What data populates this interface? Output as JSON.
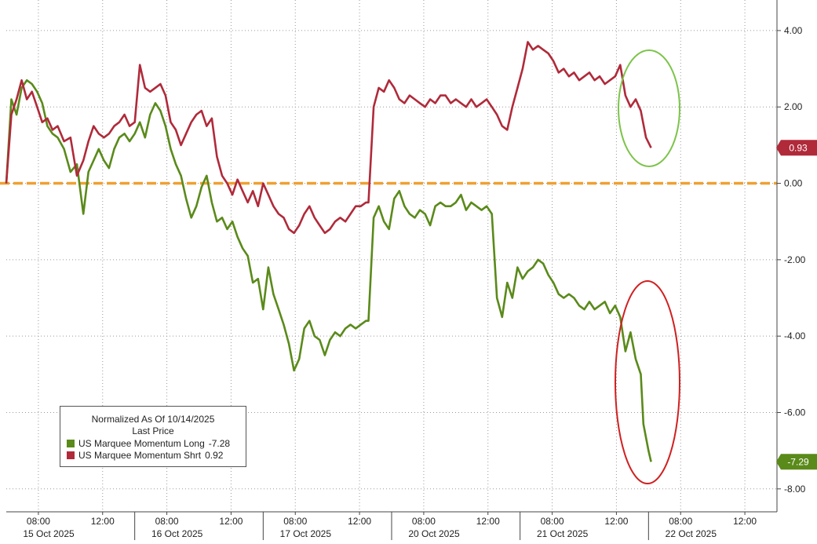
{
  "chart_data": {
    "type": "line",
    "legend": {
      "title": "Normalized As Of 10/14/2025",
      "subtitle": "Last Price",
      "placement": "bottom-left"
    },
    "y_axis": {
      "position": "right",
      "ylim": [
        -8.6,
        4.8
      ],
      "ticks": [
        4,
        2,
        0,
        -2,
        -4,
        -6,
        -8
      ],
      "tick_labels": [
        "4.00",
        "2.00",
        "0.00",
        "-2.00",
        "-4.00",
        "-6.00",
        "-8.00"
      ]
    },
    "x_axis": {
      "type": "time",
      "sessions": [
        "15 Oct 2025",
        "16 Oct 2025",
        "17 Oct 2025",
        "20 Oct 2025",
        "21 Oct 2025",
        "22 Oct 2025"
      ],
      "time_ticks": [
        "08:00",
        "12:00"
      ],
      "x_range": [
        0,
        6
      ]
    },
    "grid": true,
    "zero_line": {
      "value": 0,
      "color": "#f0a030",
      "style": "dashed"
    },
    "series": [
      {
        "name": "US Marquee Momentum Long",
        "legend_value": "-7.28",
        "color": "#5a8a1a",
        "last_label": "-7.29",
        "points": [
          [
            0.0,
            0.0
          ],
          [
            0.04,
            2.2
          ],
          [
            0.08,
            1.8
          ],
          [
            0.12,
            2.5
          ],
          [
            0.16,
            2.7
          ],
          [
            0.2,
            2.6
          ],
          [
            0.24,
            2.4
          ],
          [
            0.28,
            2.1
          ],
          [
            0.32,
            1.5
          ],
          [
            0.36,
            1.3
          ],
          [
            0.4,
            1.2
          ],
          [
            0.45,
            0.9
          ],
          [
            0.5,
            0.3
          ],
          [
            0.55,
            0.5
          ],
          [
            0.6,
            -0.8
          ],
          [
            0.64,
            0.3
          ],
          [
            0.68,
            0.6
          ],
          [
            0.72,
            0.9
          ],
          [
            0.76,
            0.6
          ],
          [
            0.8,
            0.4
          ],
          [
            0.84,
            0.9
          ],
          [
            0.88,
            1.2
          ],
          [
            0.92,
            1.3
          ],
          [
            0.96,
            1.1
          ],
          [
            1.0,
            1.3
          ],
          [
            1.04,
            1.6
          ],
          [
            1.08,
            1.2
          ],
          [
            1.12,
            1.8
          ],
          [
            1.16,
            2.1
          ],
          [
            1.2,
            1.9
          ],
          [
            1.24,
            1.5
          ],
          [
            1.28,
            0.9
          ],
          [
            1.32,
            0.5
          ],
          [
            1.36,
            0.2
          ],
          [
            1.4,
            -0.4
          ],
          [
            1.44,
            -0.9
          ],
          [
            1.48,
            -0.6
          ],
          [
            1.52,
            -0.1
          ],
          [
            1.56,
            0.2
          ],
          [
            1.6,
            -0.5
          ],
          [
            1.64,
            -1.0
          ],
          [
            1.68,
            -0.9
          ],
          [
            1.72,
            -1.2
          ],
          [
            1.76,
            -1.0
          ],
          [
            1.8,
            -1.4
          ],
          [
            1.84,
            -1.7
          ],
          [
            1.88,
            -1.9
          ],
          [
            1.92,
            -2.6
          ],
          [
            1.96,
            -2.5
          ],
          [
            2.0,
            -3.3
          ],
          [
            2.04,
            -2.2
          ],
          [
            2.08,
            -2.9
          ],
          [
            2.12,
            -3.3
          ],
          [
            2.16,
            -3.7
          ],
          [
            2.2,
            -4.2
          ],
          [
            2.24,
            -4.9
          ],
          [
            2.28,
            -4.6
          ],
          [
            2.32,
            -3.8
          ],
          [
            2.36,
            -3.6
          ],
          [
            2.4,
            -4.0
          ],
          [
            2.44,
            -4.1
          ],
          [
            2.48,
            -4.5
          ],
          [
            2.52,
            -4.1
          ],
          [
            2.56,
            -3.9
          ],
          [
            2.6,
            -4.0
          ],
          [
            2.64,
            -3.8
          ],
          [
            2.68,
            -3.7
          ],
          [
            2.72,
            -3.8
          ],
          [
            2.76,
            -3.7
          ],
          [
            2.8,
            -3.6
          ],
          [
            2.82,
            -3.6
          ],
          [
            2.86,
            -0.9
          ],
          [
            2.9,
            -0.6
          ],
          [
            2.94,
            -1.0
          ],
          [
            2.98,
            -1.2
          ],
          [
            3.02,
            -0.4
          ],
          [
            3.06,
            -0.2
          ],
          [
            3.1,
            -0.6
          ],
          [
            3.14,
            -0.8
          ],
          [
            3.18,
            -0.9
          ],
          [
            3.22,
            -0.7
          ],
          [
            3.26,
            -0.8
          ],
          [
            3.3,
            -1.1
          ],
          [
            3.34,
            -0.6
          ],
          [
            3.38,
            -0.5
          ],
          [
            3.42,
            -0.6
          ],
          [
            3.46,
            -0.6
          ],
          [
            3.5,
            -0.5
          ],
          [
            3.54,
            -0.3
          ],
          [
            3.58,
            -0.7
          ],
          [
            3.62,
            -0.5
          ],
          [
            3.66,
            -0.6
          ],
          [
            3.7,
            -0.7
          ],
          [
            3.74,
            -0.6
          ],
          [
            3.78,
            -0.8
          ],
          [
            3.82,
            -3.0
          ],
          [
            3.86,
            -3.5
          ],
          [
            3.9,
            -2.6
          ],
          [
            3.94,
            -3.0
          ],
          [
            3.98,
            -2.2
          ],
          [
            4.02,
            -2.5
          ],
          [
            4.06,
            -2.3
          ],
          [
            4.1,
            -2.2
          ],
          [
            4.14,
            -2.0
          ],
          [
            4.18,
            -2.1
          ],
          [
            4.22,
            -2.4
          ],
          [
            4.26,
            -2.6
          ],
          [
            4.3,
            -2.9
          ],
          [
            4.34,
            -3.0
          ],
          [
            4.38,
            -2.9
          ],
          [
            4.42,
            -3.0
          ],
          [
            4.46,
            -3.2
          ],
          [
            4.5,
            -3.3
          ],
          [
            4.54,
            -3.1
          ],
          [
            4.58,
            -3.3
          ],
          [
            4.62,
            -3.2
          ],
          [
            4.66,
            -3.1
          ],
          [
            4.7,
            -3.4
          ],
          [
            4.74,
            -3.2
          ],
          [
            4.78,
            -3.5
          ],
          [
            4.82,
            -4.4
          ],
          [
            4.86,
            -3.9
          ],
          [
            4.9,
            -4.6
          ],
          [
            4.94,
            -5.0
          ],
          [
            4.96,
            -6.3
          ],
          [
            5.0,
            -7.0
          ],
          [
            5.02,
            -7.29
          ]
        ]
      },
      {
        "name": "US Marquee Momentum Shrt",
        "legend_value": "0.92",
        "color": "#b02a3a",
        "last_label": "0.93",
        "points": [
          [
            0.0,
            0.0
          ],
          [
            0.04,
            1.8
          ],
          [
            0.08,
            2.2
          ],
          [
            0.12,
            2.7
          ],
          [
            0.16,
            2.2
          ],
          [
            0.2,
            2.4
          ],
          [
            0.24,
            2.0
          ],
          [
            0.28,
            1.6
          ],
          [
            0.32,
            1.7
          ],
          [
            0.36,
            1.4
          ],
          [
            0.4,
            1.5
          ],
          [
            0.45,
            1.1
          ],
          [
            0.5,
            1.2
          ],
          [
            0.55,
            0.2
          ],
          [
            0.6,
            0.6
          ],
          [
            0.64,
            1.1
          ],
          [
            0.68,
            1.5
          ],
          [
            0.72,
            1.3
          ],
          [
            0.76,
            1.2
          ],
          [
            0.8,
            1.3
          ],
          [
            0.84,
            1.5
          ],
          [
            0.88,
            1.6
          ],
          [
            0.92,
            1.8
          ],
          [
            0.96,
            1.5
          ],
          [
            1.0,
            1.6
          ],
          [
            1.04,
            3.1
          ],
          [
            1.08,
            2.5
          ],
          [
            1.12,
            2.4
          ],
          [
            1.16,
            2.5
          ],
          [
            1.2,
            2.6
          ],
          [
            1.24,
            2.3
          ],
          [
            1.28,
            1.6
          ],
          [
            1.32,
            1.4
          ],
          [
            1.36,
            1.0
          ],
          [
            1.4,
            1.3
          ],
          [
            1.44,
            1.6
          ],
          [
            1.48,
            1.8
          ],
          [
            1.52,
            1.9
          ],
          [
            1.56,
            1.5
          ],
          [
            1.6,
            1.7
          ],
          [
            1.64,
            0.7
          ],
          [
            1.68,
            0.2
          ],
          [
            1.72,
            0.0
          ],
          [
            1.76,
            -0.3
          ],
          [
            1.8,
            0.1
          ],
          [
            1.84,
            -0.2
          ],
          [
            1.88,
            -0.5
          ],
          [
            1.92,
            -0.2
          ],
          [
            1.96,
            -0.6
          ],
          [
            2.0,
            0.0
          ],
          [
            2.04,
            -0.3
          ],
          [
            2.08,
            -0.6
          ],
          [
            2.12,
            -0.8
          ],
          [
            2.16,
            -0.9
          ],
          [
            2.2,
            -1.2
          ],
          [
            2.24,
            -1.3
          ],
          [
            2.28,
            -1.1
          ],
          [
            2.32,
            -0.8
          ],
          [
            2.36,
            -0.6
          ],
          [
            2.4,
            -0.9
          ],
          [
            2.44,
            -1.1
          ],
          [
            2.48,
            -1.3
          ],
          [
            2.52,
            -1.2
          ],
          [
            2.56,
            -1.0
          ],
          [
            2.6,
            -0.9
          ],
          [
            2.64,
            -1.0
          ],
          [
            2.68,
            -0.8
          ],
          [
            2.72,
            -0.6
          ],
          [
            2.76,
            -0.6
          ],
          [
            2.8,
            -0.5
          ],
          [
            2.82,
            -0.5
          ],
          [
            2.86,
            2.0
          ],
          [
            2.9,
            2.5
          ],
          [
            2.94,
            2.4
          ],
          [
            2.98,
            2.7
          ],
          [
            3.02,
            2.5
          ],
          [
            3.06,
            2.2
          ],
          [
            3.1,
            2.1
          ],
          [
            3.14,
            2.3
          ],
          [
            3.18,
            2.2
          ],
          [
            3.22,
            2.1
          ],
          [
            3.26,
            2.0
          ],
          [
            3.3,
            2.2
          ],
          [
            3.34,
            2.1
          ],
          [
            3.38,
            2.3
          ],
          [
            3.42,
            2.3
          ],
          [
            3.46,
            2.1
          ],
          [
            3.5,
            2.2
          ],
          [
            3.54,
            2.1
          ],
          [
            3.58,
            2.0
          ],
          [
            3.62,
            2.2
          ],
          [
            3.66,
            2.0
          ],
          [
            3.7,
            2.1
          ],
          [
            3.74,
            2.2
          ],
          [
            3.78,
            2.0
          ],
          [
            3.82,
            1.8
          ],
          [
            3.86,
            1.5
          ],
          [
            3.9,
            1.4
          ],
          [
            3.94,
            2.0
          ],
          [
            3.98,
            2.5
          ],
          [
            4.02,
            3.0
          ],
          [
            4.06,
            3.7
          ],
          [
            4.1,
            3.5
          ],
          [
            4.14,
            3.6
          ],
          [
            4.18,
            3.5
          ],
          [
            4.22,
            3.4
          ],
          [
            4.26,
            3.2
          ],
          [
            4.3,
            2.9
          ],
          [
            4.34,
            3.0
          ],
          [
            4.38,
            2.8
          ],
          [
            4.42,
            2.9
          ],
          [
            4.46,
            2.7
          ],
          [
            4.5,
            2.8
          ],
          [
            4.54,
            2.9
          ],
          [
            4.58,
            2.7
          ],
          [
            4.62,
            2.8
          ],
          [
            4.66,
            2.6
          ],
          [
            4.7,
            2.7
          ],
          [
            4.74,
            2.8
          ],
          [
            4.78,
            3.1
          ],
          [
            4.82,
            2.3
          ],
          [
            4.86,
            2.0
          ],
          [
            4.9,
            2.2
          ],
          [
            4.94,
            1.9
          ],
          [
            4.98,
            1.2
          ],
          [
            5.02,
            0.93
          ]
        ]
      }
    ]
  }
}
